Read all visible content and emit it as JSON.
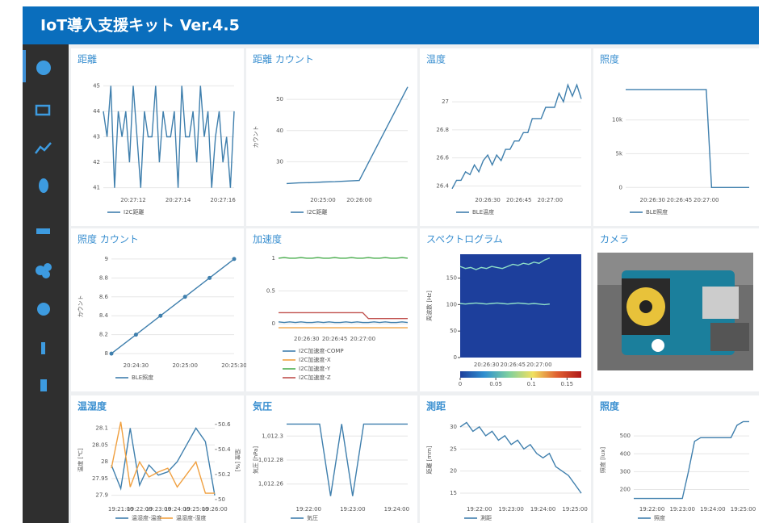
{
  "header": {
    "title": "IoT導入支援キット Ver.4.5"
  },
  "camera": {
    "title": "カメラ"
  },
  "chart_data": [
    {
      "type": "line",
      "title": "距離",
      "categories": [
        null,
        null,
        null,
        null,
        null,
        null,
        null,
        null,
        "20:27:12",
        null,
        null,
        null,
        null,
        null,
        null,
        null,
        null,
        null,
        null,
        null,
        "20:27:14",
        null,
        null,
        null,
        null,
        null,
        null,
        null,
        null,
        null,
        null,
        null,
        "20:27:16",
        null,
        null,
        null
      ],
      "series": [
        {
          "name": "I2C距離",
          "color": "#3f7fad",
          "values": [
            44,
            43,
            45,
            41,
            44,
            43,
            44,
            42,
            45,
            43,
            41,
            44,
            43,
            43,
            45,
            42,
            44,
            43,
            43,
            44,
            41,
            45,
            43,
            43,
            44,
            42,
            45,
            43,
            44,
            41,
            43,
            44,
            42,
            43,
            41,
            44
          ]
        }
      ],
      "ylim": [
        40.8,
        45.2
      ],
      "yticks": [
        41,
        42,
        43,
        44,
        45
      ],
      "grid": true
    },
    {
      "type": "line",
      "title": "距離 カウント",
      "ylabel": "カウント",
      "categories": [
        null,
        null,
        null,
        "20:25:00",
        null,
        null,
        "20:26:00",
        null,
        null,
        null,
        null
      ],
      "series": [
        {
          "name": "I2C距離",
          "color": "#3f7fad",
          "values": [
            23,
            23.2,
            23.3,
            23.5,
            23.6,
            23.8,
            24,
            31.5,
            39,
            46.5,
            54
          ]
        }
      ],
      "ylim": [
        20,
        56
      ],
      "yticks": [
        30,
        40,
        50
      ],
      "grid": true
    },
    {
      "type": "line",
      "title": "温度",
      "categories": [
        null,
        null,
        null,
        null,
        null,
        null,
        null,
        null,
        "20:26:30",
        null,
        null,
        null,
        null,
        null,
        null,
        "20:26:45",
        null,
        null,
        null,
        null,
        null,
        null,
        "20:27:00",
        null,
        null,
        null,
        null,
        null,
        null,
        null
      ],
      "series": [
        {
          "name": "BLE温度",
          "color": "#3f7fad",
          "values": [
            26.38,
            26.44,
            26.44,
            26.5,
            26.48,
            26.55,
            26.5,
            26.58,
            26.62,
            26.55,
            26.62,
            26.58,
            26.66,
            26.66,
            26.72,
            26.72,
            26.78,
            26.78,
            26.88,
            26.88,
            26.88,
            26.96,
            26.96,
            26.96,
            27.06,
            27.0,
            27.12,
            27.04,
            27.12,
            27.02
          ]
        }
      ],
      "ylim": [
        26.35,
        27.15
      ],
      "yticks": [
        26.4,
        26.6,
        26.8,
        27
      ],
      "grid": true
    },
    {
      "type": "line",
      "title": "照度",
      "categories": [
        null,
        null,
        null,
        null,
        null,
        "20:26:30",
        null,
        null,
        null,
        null,
        "20:26:45",
        null,
        null,
        null,
        null,
        "20:27:00",
        null,
        null,
        null,
        null,
        null,
        null,
        null,
        null
      ],
      "series": [
        {
          "name": "BLE照度",
          "color": "#3f7fad",
          "values": [
            14500,
            14500,
            14500,
            14500,
            14500,
            14500,
            14500,
            14500,
            14500,
            14500,
            14500,
            14500,
            14500,
            14500,
            14500,
            14500,
            0,
            0,
            0,
            0,
            0,
            0,
            0,
            0
          ]
        }
      ],
      "ylim": [
        -800,
        15800
      ],
      "yticks": [
        0,
        {
          "value": 5000,
          "label": "5k"
        },
        {
          "value": 10000,
          "label": "10k"
        }
      ],
      "grid": true
    },
    {
      "type": "line",
      "title": "照度 カウント",
      "ylabel": "カウント",
      "markers": true,
      "categories": [
        null,
        "20:24:30",
        null,
        "20:25:00",
        null,
        "20:25:30"
      ],
      "series": [
        {
          "name": "BLE照度",
          "color": "#3f7fad",
          "values": [
            8,
            8.2,
            8.4,
            8.6,
            8.8,
            9
          ]
        }
      ],
      "ylim": [
        7.95,
        9.05
      ],
      "yticks": [
        8,
        8.2,
        8.4,
        8.6,
        8.8,
        9
      ],
      "grid": true
    },
    {
      "type": "line",
      "title": "加速度",
      "categories": [
        null,
        null,
        null,
        null,
        null,
        "20:26:30",
        null,
        null,
        null,
        null,
        "20:26:45",
        null,
        null,
        null,
        null,
        "20:27:00",
        null,
        null,
        null,
        null,
        null,
        null,
        null,
        null
      ],
      "series": [
        {
          "name": "I2C加速度-COMP",
          "color": "#3f7fad",
          "values": [
            0.03,
            0.02,
            0.03,
            0.02,
            0.03,
            0.02,
            0.02,
            0.03,
            0.02,
            0.03,
            0.02,
            0.02,
            0.03,
            0.02,
            0.03,
            0.02,
            0.02,
            0.03,
            0.02,
            0.03,
            0.02,
            0.02,
            0.03,
            0.02
          ]
        },
        {
          "name": "I2C加速度-X",
          "color": "#f0a040",
          "values": [
            -0.06,
            -0.06,
            -0.06,
            -0.06,
            -0.06,
            -0.06,
            -0.06,
            -0.06,
            -0.06,
            -0.06,
            -0.06,
            -0.06,
            -0.06,
            -0.06,
            -0.06,
            -0.06,
            -0.06,
            -0.06,
            -0.06,
            -0.06,
            -0.06,
            -0.06,
            -0.06,
            -0.06
          ]
        },
        {
          "name": "I2C加速度-Y",
          "color": "#4caf50",
          "values": [
            1.0,
            1.01,
            1.0,
            1.0,
            1.01,
            1.0,
            1.0,
            1.01,
            1.0,
            1.0,
            1.01,
            1.0,
            1.0,
            1.01,
            1.0,
            1.0,
            1.01,
            1.0,
            1.0,
            1.01,
            1.0,
            1.0,
            1.01,
            1.0
          ]
        },
        {
          "name": "I2C加速度-Z",
          "color": "#c0504d",
          "values": [
            0.17,
            0.17,
            0.17,
            0.17,
            0.17,
            0.17,
            0.17,
            0.17,
            0.17,
            0.17,
            0.17,
            0.17,
            0.17,
            0.17,
            0.17,
            0.17,
            0.08,
            0.08,
            0.08,
            0.08,
            0.08,
            0.08,
            0.08,
            0.08
          ]
        }
      ],
      "ylim": [
        -0.12,
        1.06
      ],
      "yticks": [
        0,
        0.5,
        1
      ],
      "grid": true
    },
    {
      "type": "heatmap",
      "title": "スペクトログラム",
      "ylabel": "周波数 [Hz]",
      "plot_bg": "#1d3f9c",
      "categories": [
        null,
        null,
        null,
        null,
        null,
        "20:26:30",
        null,
        null,
        null,
        null,
        "20:26:45",
        null,
        null,
        null,
        null,
        "20:27:00",
        null,
        null,
        null,
        null,
        null,
        null,
        null,
        null
      ],
      "series": [
        {
          "color": "#8fe0c8",
          "values": [
            172,
            168,
            170,
            166,
            170,
            168,
            172,
            170,
            168,
            172,
            176,
            174,
            178,
            176,
            180,
            178,
            184,
            188,
            null,
            null,
            null,
            null,
            null,
            null
          ]
        },
        {
          "color": "#8fe0c8",
          "values": [
            102,
            101,
            102,
            103,
            102,
            101,
            102,
            103,
            102,
            101,
            102,
            103,
            102,
            101,
            102,
            101,
            100,
            101,
            null,
            null,
            null,
            null,
            null,
            null
          ]
        }
      ],
      "ylim": [
        0,
        195
      ],
      "yticks": [
        0,
        50,
        100,
        150
      ],
      "colorbar": {
        "colors": [
          "#1d3f9c",
          "#2f8fd0",
          "#7ed0a0",
          "#f0e060",
          "#e06030",
          "#b01818"
        ],
        "lim": [
          0,
          0.17
        ],
        "ticks": [
          0,
          0.05,
          0.1,
          0.15
        ]
      }
    },
    {
      "type": "line",
      "title": "温湿度",
      "ylabel": "温度 [℃]",
      "y2label": "湿度 [%]",
      "categories": [
        null,
        "19:21:00",
        null,
        "19:22:00",
        null,
        "19:23:00",
        null,
        "19:24:00",
        null,
        "19:25:00",
        null,
        "19:26:00"
      ],
      "series": [
        {
          "name": "温湿度-温度",
          "color": "#3f7fad",
          "values": [
            27.99,
            27.92,
            28.1,
            27.93,
            27.99,
            27.96,
            27.97,
            28.0,
            28.05,
            28.1,
            28.06,
            27.9
          ]
        },
        {
          "name": "温湿度-湿度",
          "color": "#f0a040",
          "axis": "y2",
          "values": [
            50.25,
            50.62,
            50.1,
            50.3,
            50.18,
            50.22,
            50.25,
            50.1,
            50.2,
            50.3,
            50.05,
            50.05
          ]
        }
      ],
      "ylim": [
        27.88,
        28.13
      ],
      "yticks": [
        27.9,
        27.95,
        28,
        28.05,
        28.1
      ],
      "y2lim": [
        49.98,
        50.65
      ],
      "y2ticks": [
        50,
        50.2,
        50.4,
        50.6
      ],
      "grid": true
    },
    {
      "type": "line",
      "title": "気圧",
      "ylabel": "気圧 [hPa]",
      "categories": [
        null,
        null,
        "19:22:00",
        null,
        null,
        null,
        "19:23:00",
        null,
        null,
        null,
        "19:24:00",
        null
      ],
      "series": [
        {
          "name": "気圧",
          "color": "#3f7fad",
          "values": [
            1012.31,
            1012.31,
            1012.31,
            1012.31,
            1012.25,
            1012.31,
            1012.25,
            1012.31,
            1012.31,
            1012.31,
            1012.31,
            1012.31
          ]
        }
      ],
      "ylim": [
        1012.245,
        1012.315
      ],
      "yticks": [
        {
          "value": 1012.26,
          "label": "1,012.26"
        },
        {
          "value": 1012.28,
          "label": "1,012.28"
        },
        {
          "value": 1012.3,
          "label": "1,012.3"
        }
      ],
      "grid": true
    },
    {
      "type": "line",
      "title": "測距",
      "ylabel": "距離 [mm]",
      "categories": [
        null,
        null,
        null,
        "19:22:00",
        null,
        null,
        null,
        null,
        "19:23:00",
        null,
        null,
        null,
        null,
        "19:24:00",
        null,
        null,
        null,
        null,
        "19:25:00",
        null
      ],
      "series": [
        {
          "name": "測距",
          "color": "#3f7fad",
          "values": [
            30,
            31,
            29,
            30,
            28,
            29,
            27,
            28,
            26,
            27,
            25,
            26,
            24,
            23,
            24,
            21,
            20,
            19,
            17,
            15
          ]
        }
      ],
      "ylim": [
        13,
        32
      ],
      "yticks": [
        15,
        20,
        25,
        30
      ],
      "grid": true
    },
    {
      "type": "line",
      "title": "照度",
      "ylabel": "照度 [lux]",
      "categories": [
        null,
        null,
        null,
        "19:22:00",
        null,
        null,
        null,
        null,
        "19:23:00",
        null,
        null,
        null,
        null,
        "19:24:00",
        null,
        null,
        null,
        null,
        "19:25:00",
        null
      ],
      "series": [
        {
          "name": "照度",
          "color": "#3f7fad",
          "values": [
            150,
            150,
            150,
            150,
            150,
            150,
            150,
            150,
            150,
            300,
            470,
            490,
            490,
            490,
            490,
            490,
            490,
            560,
            580,
            580
          ]
        }
      ],
      "ylim": [
        130,
        600
      ],
      "yticks": [
        200,
        300,
        400,
        500
      ],
      "grid": true
    }
  ]
}
